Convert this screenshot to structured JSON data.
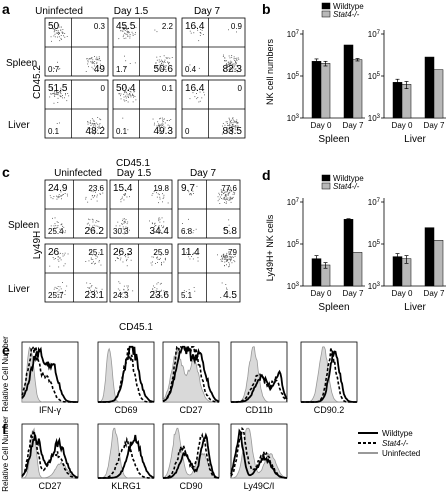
{
  "colors": {
    "wildtype": "#000000",
    "knockout": "#b8b8b8",
    "uninfected_fill": "#d9d9d9",
    "uninfected_line": "#999999",
    "dot": "#555555"
  },
  "panel_a": {
    "label": "a",
    "col_titles": [
      "Uninfected",
      "Day 1.5",
      "Day 7"
    ],
    "row_titles": [
      "Spleen",
      "Liver"
    ],
    "ylabel": "CD45.2",
    "xlabel": "CD45.1",
    "quadrants": [
      [
        [
          "50",
          "0.3",
          "0.7",
          "49"
        ],
        [
          "45.5",
          "2.2",
          "1.7",
          "50.6"
        ],
        [
          "16.4",
          "0.9",
          "0.4",
          "82.3"
        ]
      ],
      [
        [
          "51.5",
          "0",
          "0.1",
          "48.2"
        ],
        [
          "50.4",
          "0.1",
          "0.1",
          "49.3"
        ],
        [
          "16.4",
          "0",
          "0",
          "83.5"
        ]
      ]
    ]
  },
  "panel_b": {
    "label": "b",
    "ylabel": "NK cell numbers",
    "legend": [
      "Wildtype",
      "Stat4-/-"
    ],
    "charts": [
      {
        "title": "Spleen",
        "ticks": [
          "10^7",
          "10^5",
          "10^3"
        ]
      },
      {
        "title": "Liver",
        "ticks": [
          "10^7",
          "10^5",
          "10^3"
        ]
      }
    ]
  },
  "panel_c": {
    "label": "c",
    "col_titles": [
      "Uninfected",
      "Day 1.5",
      "Day 7"
    ],
    "row_titles": [
      "Spleen",
      "Liver"
    ],
    "ylabel": "Ly49H",
    "xlabel": "CD45.1",
    "quadrants": [
      [
        [
          "24.9",
          "23.6",
          "25.4",
          "26.2"
        ],
        [
          "15.4",
          "19.8",
          "30.3",
          "34.4"
        ],
        [
          "9.7",
          "77.6",
          "6.8",
          "5.8"
        ]
      ],
      [
        [
          "26",
          "25.1",
          "25.7",
          "23.1"
        ],
        [
          "26.3",
          "25.9",
          "24.3",
          "23.6"
        ],
        [
          "11.4",
          "79",
          "5.1",
          "4.5"
        ]
      ]
    ]
  },
  "panel_d": {
    "label": "d",
    "ylabel": "Ly49H+ NK cells",
    "legend": [
      "Wildtype",
      "Stat4-/-"
    ],
    "charts": [
      {
        "title": "Spleen",
        "ticks": [
          "10^7",
          "10^5",
          "10^3"
        ]
      },
      {
        "title": "Liver",
        "ticks": [
          "10^7",
          "10^5",
          "10^3"
        ]
      }
    ]
  },
  "panel_e": {
    "label": "e",
    "ylabel": "Relative Cell Number",
    "markers": [
      "IFN-γ",
      "CD69",
      "CD27",
      "CD11b",
      "CD90.2"
    ]
  },
  "panel_f": {
    "label": "f",
    "ylabel": "Relative Cell Number",
    "markers": [
      "CD27",
      "KLRG1",
      "CD90",
      "Ly49C/I"
    ],
    "legend": [
      "Wildtype",
      "Stat4-/-",
      "Uninfected"
    ]
  },
  "chart_data": [
    {
      "type": "bar",
      "title": "Spleen",
      "ylabel": "NK cell numbers",
      "scale": "log",
      "ylim": [
        1000,
        10000000
      ],
      "categories": [
        "Day 0",
        "Day 7"
      ],
      "series": [
        {
          "name": "Wildtype",
          "values": [
            500000,
            3000000
          ],
          "errors": [
            150000,
            0
          ]
        },
        {
          "name": "Stat4-/-",
          "values": [
            400000,
            600000
          ],
          "errors": [
            100000,
            80000
          ]
        }
      ]
    },
    {
      "type": "bar",
      "title": "Liver",
      "ylabel": "NK cell numbers",
      "scale": "log",
      "ylim": [
        1000,
        10000000
      ],
      "categories": [
        "Day 0",
        "Day 7"
      ],
      "series": [
        {
          "name": "Wildtype",
          "values": [
            50000,
            800000
          ],
          "errors": [
            20000,
            0
          ]
        },
        {
          "name": "Stat4-/-",
          "values": [
            40000,
            200000
          ],
          "errors": [
            15000,
            0
          ]
        }
      ]
    },
    {
      "type": "bar",
      "title": "Spleen",
      "ylabel": "Ly49H+ NK cells",
      "scale": "log",
      "ylim": [
        1000,
        10000000
      ],
      "categories": [
        "Day 0",
        "Day 7"
      ],
      "series": [
        {
          "name": "Wildtype",
          "values": [
            20000,
            1500000
          ],
          "errors": [
            8000,
            100000
          ]
        },
        {
          "name": "Stat4-/-",
          "values": [
            10000,
            40000
          ],
          "errors": [
            3000,
            0
          ]
        }
      ]
    },
    {
      "type": "bar",
      "title": "Liver",
      "ylabel": "Ly49H+ NK cells",
      "scale": "log",
      "ylim": [
        1000,
        10000000
      ],
      "categories": [
        "Day 0",
        "Day 7"
      ],
      "series": [
        {
          "name": "Wildtype",
          "values": [
            25000,
            600000
          ],
          "errors": [
            10000,
            0
          ]
        },
        {
          "name": "Stat4-/-",
          "values": [
            20000,
            150000
          ],
          "errors": [
            8000,
            0
          ]
        }
      ]
    }
  ]
}
